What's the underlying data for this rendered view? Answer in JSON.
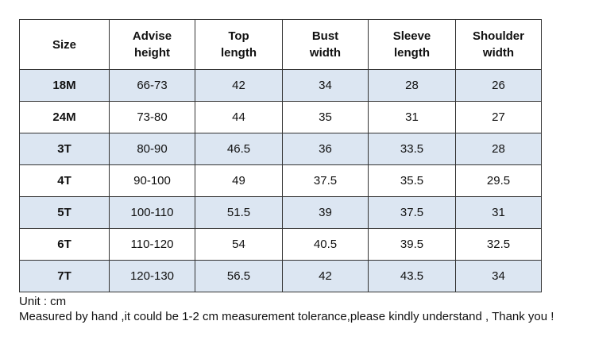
{
  "table": {
    "header": [
      [
        "Size"
      ],
      [
        "Advise",
        "height"
      ],
      [
        "Top",
        "length"
      ],
      [
        "Bust",
        "width"
      ],
      [
        "Sleeve",
        "length"
      ],
      [
        "Shoulder",
        "width"
      ]
    ],
    "rows": [
      [
        "18M",
        "66-73",
        "42",
        "34",
        "28",
        "26"
      ],
      [
        "24M",
        "73-80",
        "44",
        "35",
        "31",
        "27"
      ],
      [
        "3T",
        "80-90",
        "46.5",
        "36",
        "33.5",
        "28"
      ],
      [
        "4T",
        "90-100",
        "49",
        "37.5",
        "35.5",
        "29.5"
      ],
      [
        "5T",
        "100-110",
        "51.5",
        "39",
        "37.5",
        "31"
      ],
      [
        "6T",
        "110-120",
        "54",
        "40.5",
        "39.5",
        "32.5"
      ],
      [
        "7T",
        "120-130",
        "56.5",
        "42",
        "43.5",
        "34"
      ]
    ]
  },
  "notes": [
    "Unit : cm",
    "Measured by hand ,it could be 1-2 cm measurement tolerance,please kindly understand , Thank you !"
  ]
}
